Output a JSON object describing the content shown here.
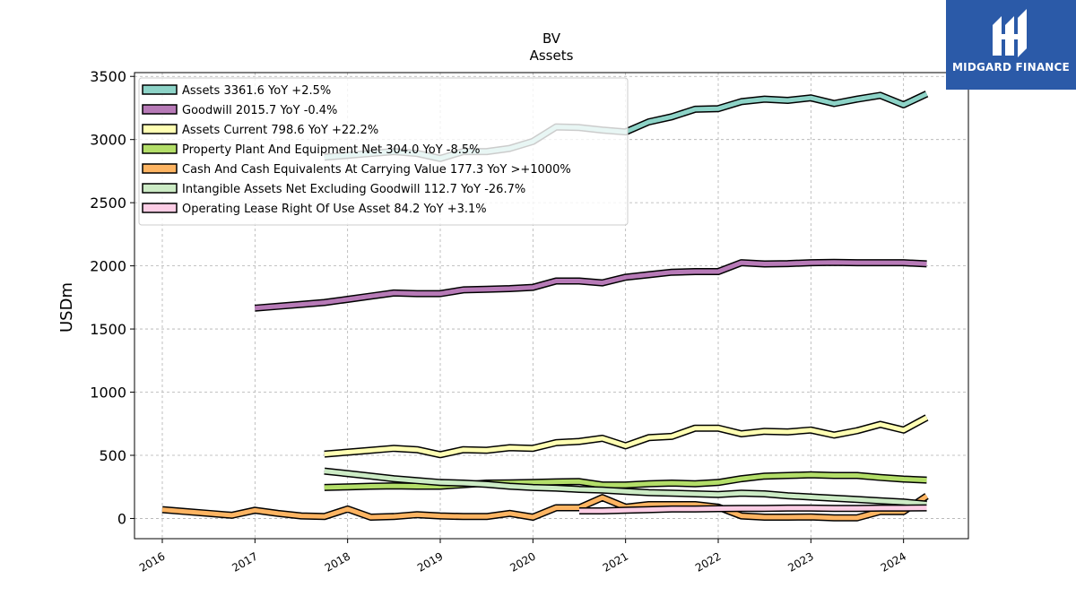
{
  "brand": {
    "name": "MIDGARD FINANCE",
    "color": "#2b5aa8"
  },
  "chart_data": {
    "type": "line",
    "title": "BV",
    "subtitle": "Assets",
    "ylabel": "USDm",
    "xlabel": "",
    "xlim": [
      2015.7,
      2024.7
    ],
    "ylim": [
      -160,
      3530
    ],
    "grid": true,
    "legend": "top-left",
    "x_ticks": [
      2016,
      2017,
      2018,
      2019,
      2020,
      2021,
      2022,
      2023,
      2024
    ],
    "x_tick_labels": [
      "2016",
      "2017",
      "2018",
      "2019",
      "2020",
      "2021",
      "2022",
      "2023",
      "2024"
    ],
    "y_ticks": [
      0,
      500,
      1000,
      1500,
      2000,
      2500,
      3000,
      3500
    ],
    "y_tick_labels": [
      "0",
      "500",
      "1000",
      "1500",
      "2000",
      "2500",
      "3000",
      "3500"
    ],
    "series": [
      {
        "name": "Assets  3361.6 YoY +2.5%",
        "color": "#8dd3c7",
        "x": [
          2017.75,
          2018.0,
          2018.25,
          2018.5,
          2018.75,
          2019.0,
          2019.25,
          2019.5,
          2019.75,
          2020.0,
          2020.25,
          2020.5,
          2020.75,
          2021.0,
          2021.25,
          2021.5,
          2021.75,
          2022.0,
          2022.25,
          2022.5,
          2022.75,
          2023.0,
          2023.25,
          2023.5,
          2023.75,
          2024.0,
          2024.25
        ],
        "y": [
          2860,
          2875,
          2890,
          2905,
          2890,
          2850,
          2905,
          2905,
          2930,
          2985,
          3100,
          3095,
          3075,
          3060,
          3140,
          3180,
          3240,
          3245,
          3300,
          3320,
          3310,
          3330,
          3285,
          3320,
          3350,
          3275,
          3362
        ]
      },
      {
        "name": "Goodwill  2015.7 YoY -0.4%",
        "color": "#b77ab7",
        "x": [
          2017.0,
          2017.25,
          2017.5,
          2017.75,
          2018.0,
          2018.25,
          2018.5,
          2018.75,
          2019.0,
          2019.25,
          2019.5,
          2019.75,
          2020.0,
          2020.25,
          2020.5,
          2020.75,
          2021.0,
          2021.25,
          2021.5,
          2021.75,
          2022.0,
          2022.25,
          2022.5,
          2022.75,
          2023.0,
          2023.25,
          2023.5,
          2023.75,
          2024.0,
          2024.25
        ],
        "y": [
          1665,
          1680,
          1695,
          1710,
          1735,
          1760,
          1785,
          1780,
          1780,
          1810,
          1815,
          1820,
          1830,
          1880,
          1880,
          1865,
          1910,
          1930,
          1950,
          1955,
          1955,
          2025,
          2015,
          2018,
          2025,
          2028,
          2025,
          2025,
          2025,
          2016
        ]
      },
      {
        "name": "Assets Current  798.6 YoY +22.2%",
        "color": "#ffffb3",
        "x": [
          2017.75,
          2018.0,
          2018.25,
          2018.5,
          2018.75,
          2019.0,
          2019.25,
          2019.5,
          2019.75,
          2020.0,
          2020.25,
          2020.5,
          2020.75,
          2021.0,
          2021.25,
          2021.5,
          2021.75,
          2022.0,
          2022.25,
          2022.5,
          2022.75,
          2023.0,
          2023.25,
          2023.5,
          2023.75,
          2024.0,
          2024.25
        ],
        "y": [
          510,
          525,
          540,
          555,
          545,
          505,
          545,
          540,
          560,
          555,
          600,
          610,
          635,
          575,
          640,
          650,
          715,
          715,
          670,
          690,
          685,
          700,
          660,
          695,
          745,
          700,
          799
        ]
      },
      {
        "name": "Property Plant And Equipment Net  304.0 YoY -8.5%",
        "color": "#b3de69",
        "x": [
          2017.75,
          2018.0,
          2018.25,
          2018.5,
          2018.75,
          2019.0,
          2019.25,
          2019.5,
          2019.75,
          2020.0,
          2020.25,
          2020.5,
          2020.75,
          2021.0,
          2021.25,
          2021.5,
          2021.75,
          2022.0,
          2022.25,
          2022.5,
          2022.75,
          2023.0,
          2023.25,
          2023.5,
          2023.75,
          2024.0,
          2024.25
        ],
        "y": [
          245,
          250,
          255,
          258,
          255,
          255,
          268,
          280,
          282,
          285,
          290,
          292,
          265,
          265,
          275,
          280,
          275,
          285,
          315,
          335,
          340,
          345,
          340,
          340,
          325,
          312,
          304
        ]
      },
      {
        "name": "Cash And Cash Equivalents At Carrying Value  177.3 YoY >+1000%",
        "color": "#fdb462",
        "x": [
          2016.0,
          2016.25,
          2016.5,
          2016.75,
          2017.0,
          2017.25,
          2017.5,
          2017.75,
          2018.0,
          2018.25,
          2018.5,
          2018.75,
          2019.0,
          2019.25,
          2019.5,
          2019.75,
          2020.0,
          2020.25,
          2020.5,
          2020.75,
          2021.0,
          2021.25,
          2021.5,
          2021.75,
          2022.0,
          2022.25,
          2022.5,
          2022.75,
          2023.0,
          2023.25,
          2023.5,
          2023.75,
          2024.0,
          2024.25
        ],
        "y": [
          70,
          55,
          40,
          25,
          65,
          40,
          20,
          15,
          75,
          10,
          15,
          30,
          20,
          15,
          15,
          40,
          10,
          85,
          85,
          165,
          90,
          110,
          110,
          110,
          90,
          20,
          10,
          10,
          12,
          5,
          5,
          55,
          55,
          177
        ]
      },
      {
        "name": "Intangible Assets Net Excluding Goodwill  112.7 YoY -26.7%",
        "color": "#ccebc5",
        "x": [
          2017.75,
          2018.0,
          2018.25,
          2018.5,
          2018.75,
          2019.0,
          2019.25,
          2019.5,
          2019.75,
          2020.0,
          2020.25,
          2020.5,
          2020.75,
          2021.0,
          2021.25,
          2021.5,
          2021.75,
          2022.0,
          2022.25,
          2022.5,
          2022.75,
          2023.0,
          2023.25,
          2023.5,
          2023.75,
          2024.0,
          2024.25
        ],
        "y": [
          375,
          355,
          335,
          315,
          300,
          285,
          280,
          270,
          255,
          245,
          240,
          230,
          225,
          215,
          205,
          200,
          195,
          190,
          200,
          195,
          180,
          170,
          160,
          150,
          140,
          130,
          113
        ]
      },
      {
        "name": "Operating Lease Right Of Use Asset  84.2 YoY +3.1%",
        "color": "#fccde5",
        "x": [
          2020.5,
          2020.75,
          2021.0,
          2021.25,
          2021.5,
          2021.75,
          2022.0,
          2022.25,
          2022.5,
          2022.75,
          2023.0,
          2023.25,
          2023.5,
          2023.75,
          2024.0,
          2024.25
        ],
        "y": [
          60,
          60,
          65,
          70,
          75,
          75,
          78,
          80,
          80,
          82,
          82,
          80,
          80,
          82,
          82,
          84
        ]
      }
    ]
  }
}
